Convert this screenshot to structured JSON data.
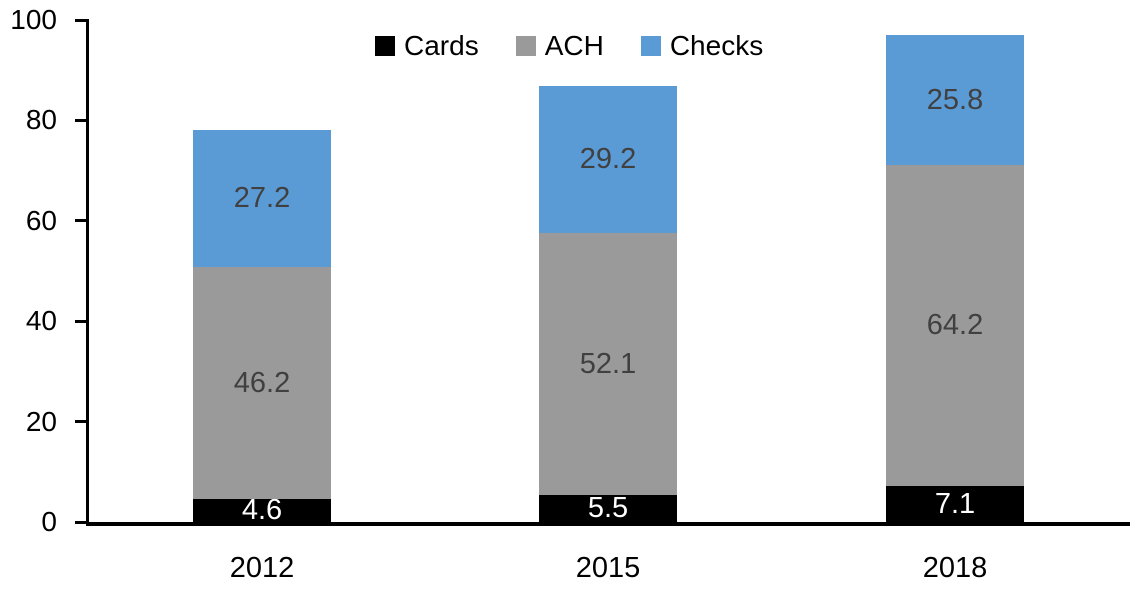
{
  "chart_data": {
    "type": "bar",
    "stacked": true,
    "title": "",
    "xlabel": "",
    "ylabel": "",
    "categories": [
      "2012",
      "2015",
      "2018"
    ],
    "series": [
      {
        "name": "Cards",
        "color": "#000000",
        "label_color": "#ffffff",
        "values": [
          4.6,
          5.5,
          7.1
        ]
      },
      {
        "name": "ACH",
        "color": "#9a9a9a",
        "label_color": "#404040",
        "values": [
          46.2,
          52.1,
          64.2
        ]
      },
      {
        "name": "Checks",
        "color": "#5b9bd5",
        "label_color": "#404040",
        "values": [
          27.2,
          29.2,
          25.8
        ]
      }
    ],
    "y_ticks": [
      0,
      20,
      40,
      60,
      80,
      100
    ],
    "ylim": [
      0,
      100
    ],
    "legend_position": "top-center",
    "grid": false,
    "axis_color": "#000000",
    "background_color": "#ffffff"
  }
}
